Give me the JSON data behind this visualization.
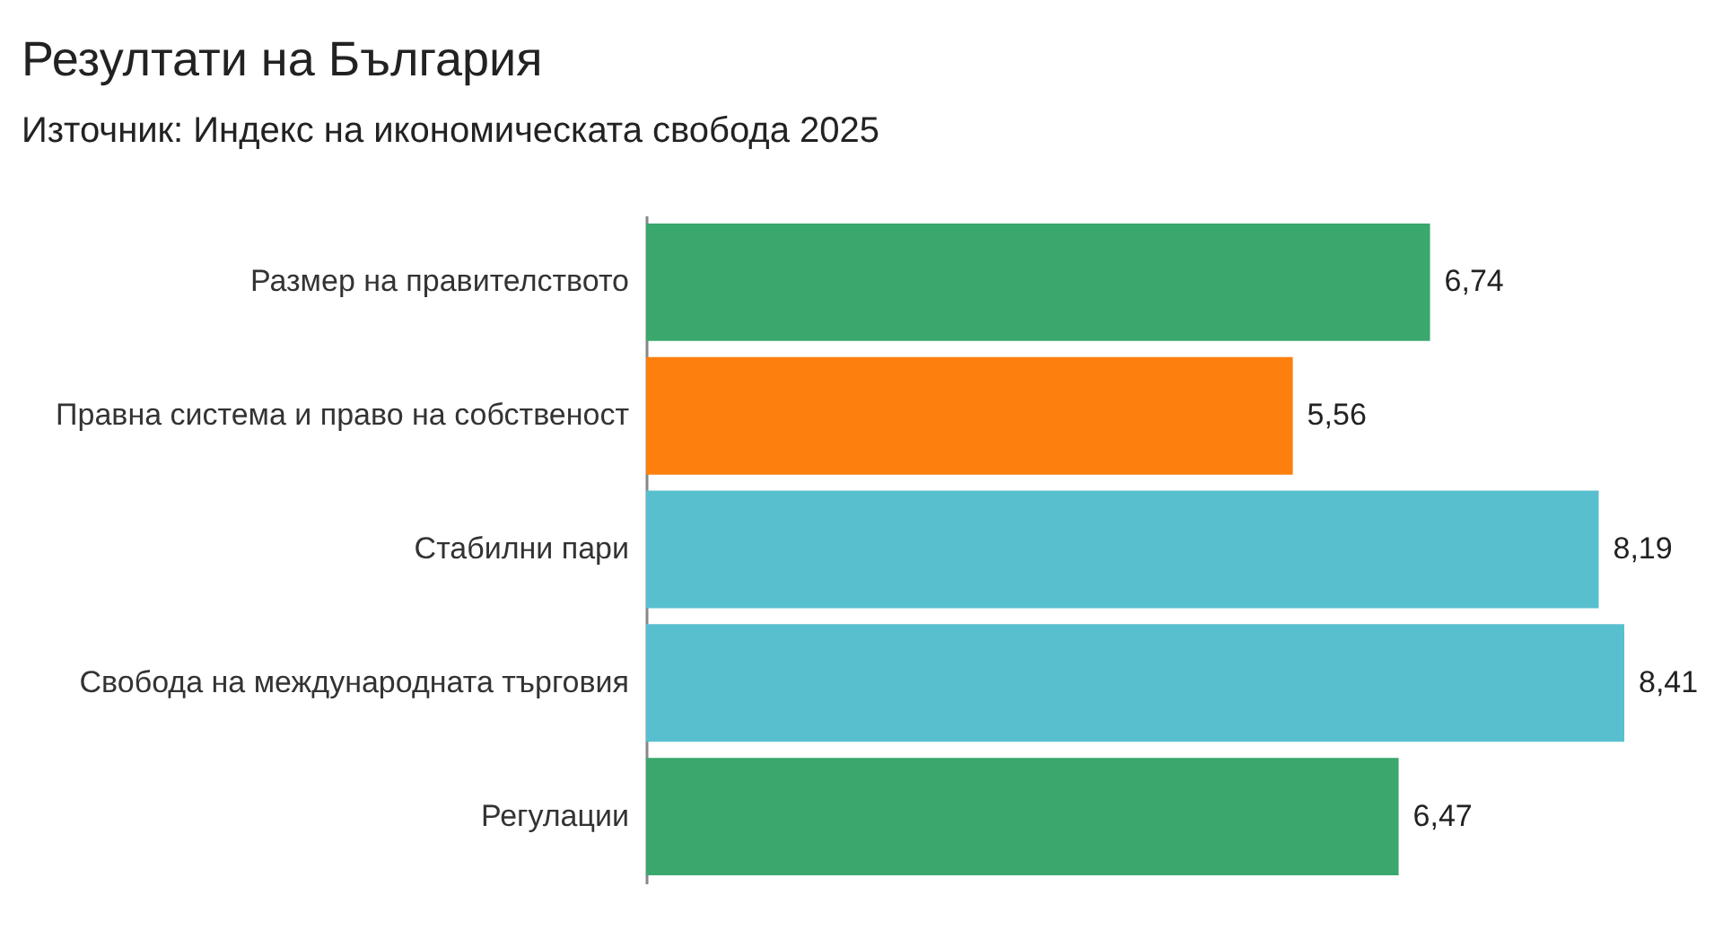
{
  "chart_data": {
    "type": "bar",
    "orientation": "horizontal",
    "title": "Резултати на България",
    "subtitle": "Източник: Индекс на икономическата свобода 2025",
    "categories": [
      "Размер на правителството",
      "Правна система и право на собственост",
      "Стабилни пари",
      "Свобода на международната търговия",
      "Регулации"
    ],
    "values": [
      6.74,
      5.56,
      8.19,
      8.41,
      6.47
    ],
    "colors": [
      "#3aa76d",
      "#fd7f0e",
      "#58bfcf",
      "#58bfcf",
      "#3aa76d"
    ],
    "value_labels": [
      "6,74",
      "5,56",
      "8,19",
      "8,41",
      "6,47"
    ]
  }
}
